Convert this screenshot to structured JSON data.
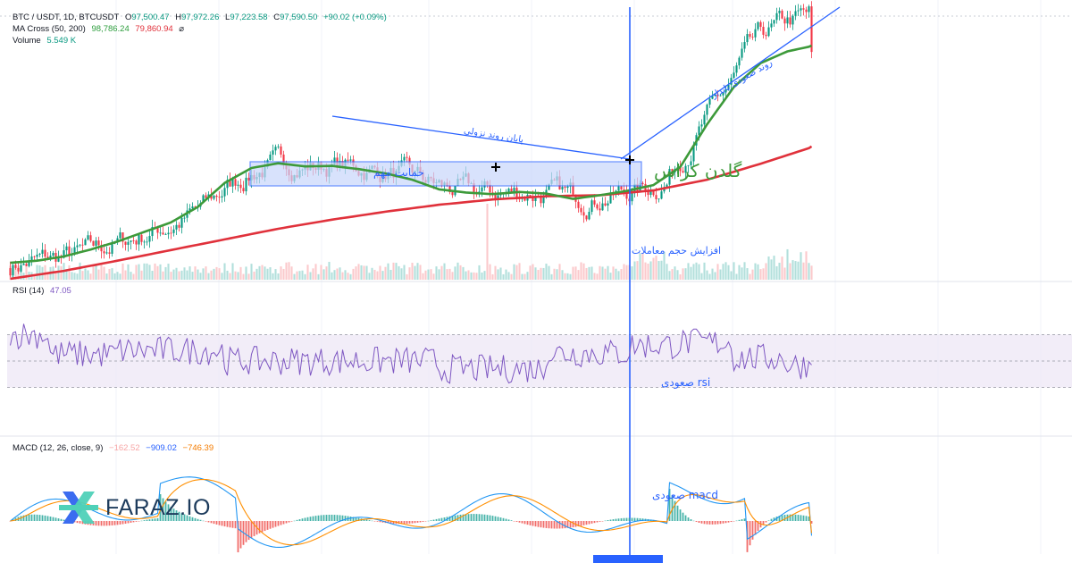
{
  "legend": {
    "symbol": "BTC / USDT, 1D, BTCUSDT",
    "o_label": "O",
    "o_value": "97,500.47",
    "h_label": "H",
    "h_value": "97,972.26",
    "l_label": "L",
    "l_value": "97,223.58",
    "c_label": "C",
    "c_value": "97,590.50",
    "change": "+90.02 (+0.09%)",
    "ma_label": "MA Cross (50, 200)",
    "ma_fast": "98,786.24",
    "ma_slow": "79,860.94",
    "ma_icon": "⌀",
    "volume_label": "Volume",
    "volume_value": "5.549 K",
    "rsi_label": "RSI (14)",
    "rsi_value": "47.05",
    "macd_label": "MACD (12, 26, close, 9)",
    "macd_hist": "−162.52",
    "macd_line": "−909.02",
    "macd_signal": "−746.39"
  },
  "annotations": {
    "support": "حمایت مهم",
    "downtrend_end": "پایان روند نزولی",
    "uptrend": "روند صعودی پایدار",
    "golden_cross": "گلدن کراس",
    "volume_increase": "افزایش حجم معاملات",
    "rsi_up": "rsi صعودی",
    "macd_up": "macd صعودی"
  },
  "logo": {
    "text": "FARAZ.IO"
  },
  "date_badge": "",
  "colors": {
    "up": "#089981",
    "down": "#f23645",
    "ma_fast": "#3d9a3a",
    "ma_slow": "#e0313b",
    "trendline": "#2962ff",
    "rsi": "#7e57c2",
    "macd_line": "#2196f3",
    "macd_signal": "#ff8f00",
    "support_zone": "#c8d6fb"
  },
  "chart_data": {
    "type": "candlestick",
    "price_ylim": [
      55000,
      106000
    ],
    "ma_fast_points": [
      [
        0,
        58000
      ],
      [
        10,
        58400
      ],
      [
        20,
        59200
      ],
      [
        30,
        60500
      ],
      [
        40,
        62000
      ],
      [
        50,
        63800
      ],
      [
        60,
        65600
      ],
      [
        70,
        68500
      ],
      [
        80,
        73000
      ],
      [
        90,
        75800
      ],
      [
        100,
        76700
      ],
      [
        110,
        76100
      ],
      [
        120,
        76200
      ],
      [
        130,
        75600
      ],
      [
        140,
        74800
      ],
      [
        150,
        73600
      ],
      [
        160,
        71800
      ],
      [
        170,
        71200
      ],
      [
        180,
        70900
      ],
      [
        190,
        71300
      ],
      [
        200,
        71000
      ],
      [
        210,
        70000
      ],
      [
        220,
        70700
      ],
      [
        230,
        71500
      ],
      [
        240,
        72600
      ],
      [
        250,
        76000
      ],
      [
        260,
        84000
      ],
      [
        270,
        91000
      ],
      [
        280,
        95500
      ],
      [
        290,
        97700
      ],
      [
        300,
        98786
      ]
    ],
    "ma_slow_points": [
      [
        0,
        55000
      ],
      [
        20,
        56500
      ],
      [
        40,
        58400
      ],
      [
        60,
        60400
      ],
      [
        80,
        62400
      ],
      [
        100,
        64400
      ],
      [
        120,
        66100
      ],
      [
        140,
        67600
      ],
      [
        160,
        68900
      ],
      [
        180,
        69900
      ],
      [
        200,
        70500
      ],
      [
        220,
        70700
      ],
      [
        240,
        71600
      ],
      [
        260,
        73600
      ],
      [
        280,
        76600
      ],
      [
        300,
        79861
      ]
    ],
    "rsi_range": [
      0,
      100
    ],
    "rsi_band": [
      30,
      70
    ],
    "rsi_mid": 50,
    "rsi_last": 47.05,
    "macd_last": {
      "macd": -909.02,
      "signal": -746.39,
      "hist": -162.52
    }
  }
}
